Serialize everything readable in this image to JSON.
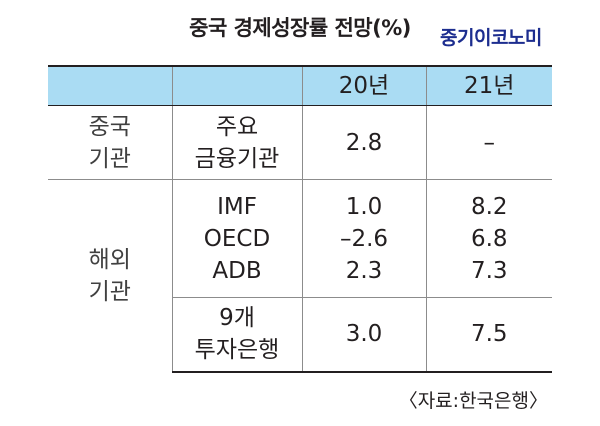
{
  "header": {
    "title": "중국 경제성장률 전망(%)",
    "brand": "중기이코노미"
  },
  "table": {
    "columns": [
      "",
      "",
      "20년",
      "21년"
    ],
    "china_group": [
      "중국",
      "기관"
    ],
    "china_org": [
      "주요",
      "금융기관"
    ],
    "china_20": "2.8",
    "china_21": "–",
    "overseas_group": [
      "해외",
      "기관"
    ],
    "intl_orgs": [
      "IMF",
      "OECD",
      "ADB"
    ],
    "intl_20": [
      "1.0",
      "–2.6",
      "2.3"
    ],
    "intl_21": [
      "8.2",
      "6.8",
      "7.3"
    ],
    "ib_org": [
      "9개",
      "투자은행"
    ],
    "ib_20": "3.0",
    "ib_21": "7.5"
  },
  "footer": {
    "source": "〈자료:한국은행〉"
  }
}
